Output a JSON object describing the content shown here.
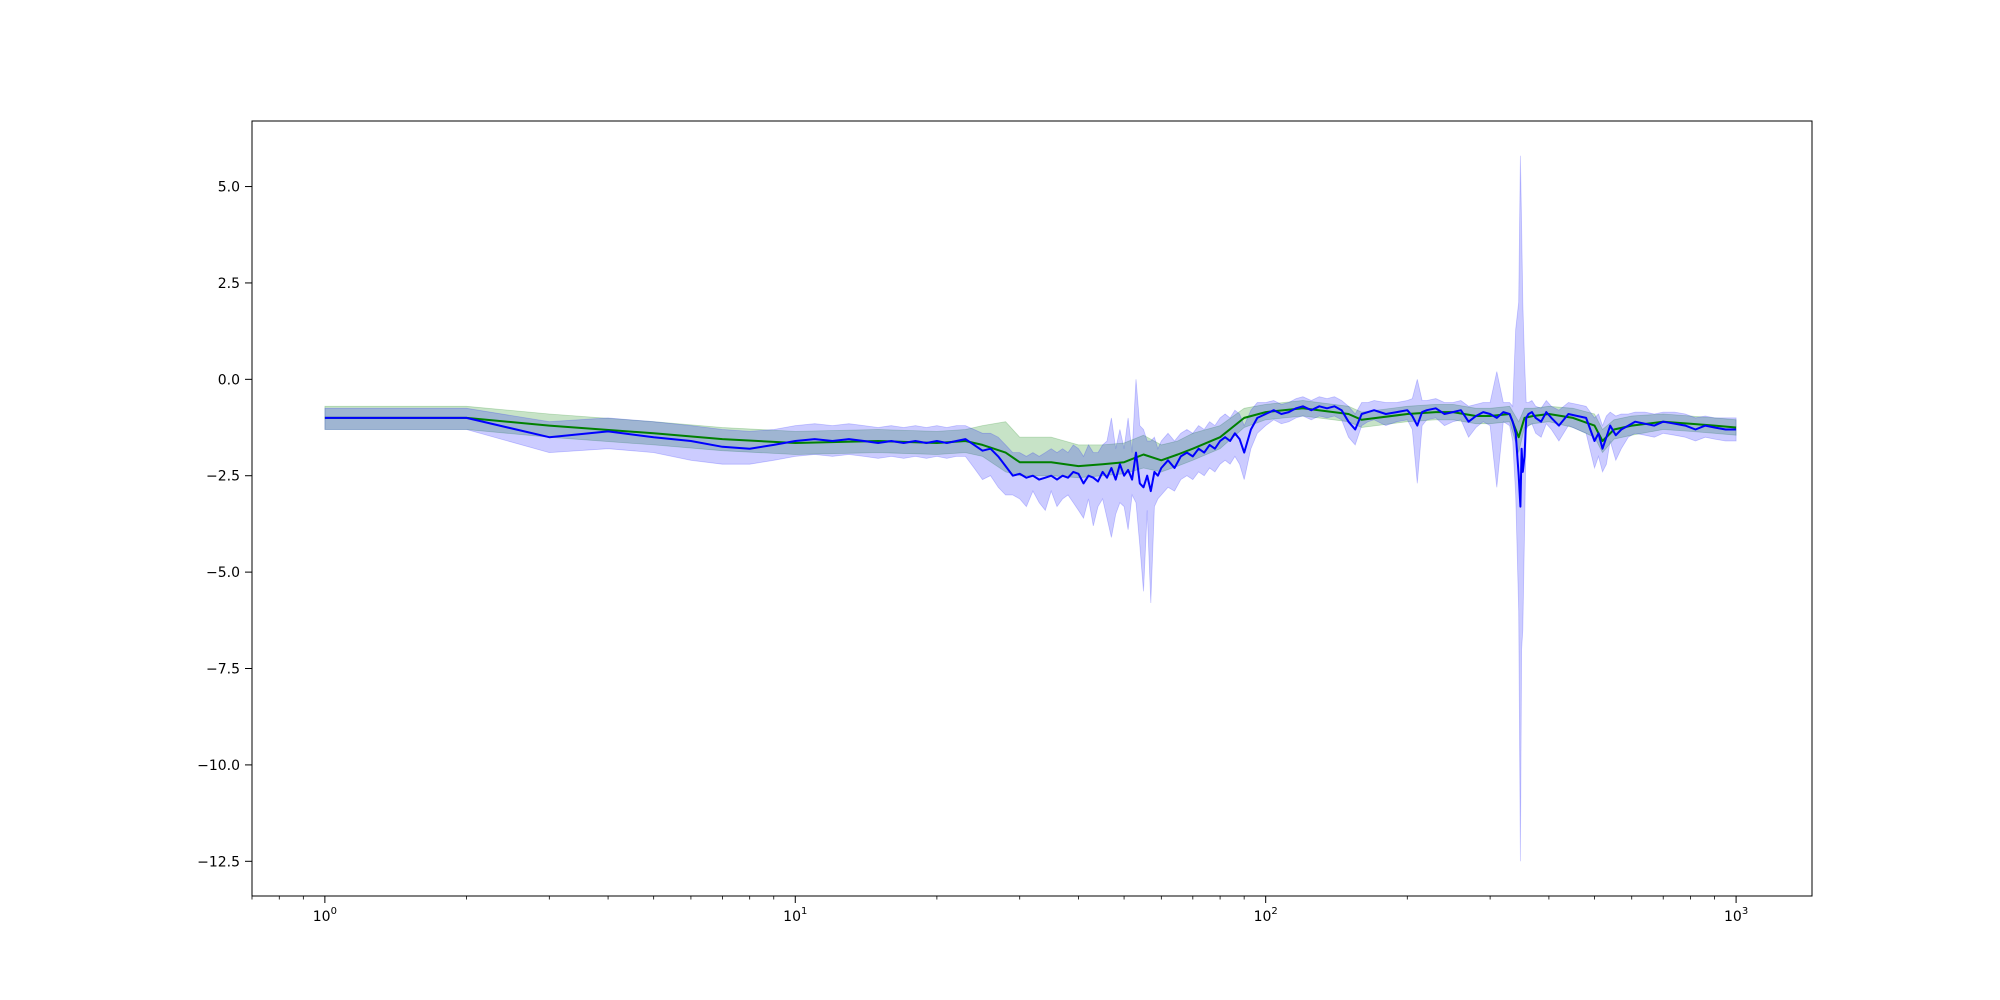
{
  "chart_data": {
    "type": "line",
    "title": "",
    "xlabel": "",
    "ylabel": "",
    "xscale": "log",
    "xlim": [
      0.7,
      1450
    ],
    "ylim": [
      -13.4,
      6.7
    ],
    "grid": false,
    "legend": "none",
    "x_ticks": [
      {
        "value": 1,
        "base": "10",
        "exp": "0"
      },
      {
        "value": 10,
        "base": "10",
        "exp": "1"
      },
      {
        "value": 100,
        "base": "10",
        "exp": "2"
      },
      {
        "value": 1000,
        "base": "10",
        "exp": "3"
      }
    ],
    "y_ticks": [
      {
        "value": 5.0,
        "label": "5.0"
      },
      {
        "value": 2.5,
        "label": "2.5"
      },
      {
        "value": 0.0,
        "label": "0.0"
      },
      {
        "value": -2.5,
        "label": "−2.5"
      },
      {
        "value": -5.0,
        "label": "−5.0"
      },
      {
        "value": -7.5,
        "label": "−7.5"
      },
      {
        "value": -10.0,
        "label": "−10.0"
      },
      {
        "value": -12.5,
        "label": "−12.5"
      }
    ],
    "series": [
      {
        "color": "#008000",
        "band_color": "#008000",
        "band_opacity": 0.22,
        "x": [
          1,
          2,
          3,
          5,
          7,
          10,
          15,
          20,
          23,
          25,
          28,
          30,
          35,
          40,
          45,
          50,
          55,
          60,
          65,
          70,
          80,
          90,
          100,
          120,
          150,
          160,
          200,
          230,
          250,
          280,
          300,
          330,
          345,
          355,
          370,
          400,
          450,
          500,
          520,
          550,
          600,
          700,
          800,
          900,
          1000
        ],
        "y": [
          -1.0,
          -1.0,
          -1.2,
          -1.4,
          -1.55,
          -1.65,
          -1.6,
          -1.65,
          -1.6,
          -1.7,
          -1.9,
          -2.15,
          -2.15,
          -2.25,
          -2.2,
          -2.15,
          -1.95,
          -2.1,
          -1.95,
          -1.8,
          -1.5,
          -1.0,
          -0.85,
          -0.75,
          -0.9,
          -1.05,
          -0.9,
          -0.85,
          -0.85,
          -0.95,
          -0.95,
          -0.9,
          -1.5,
          -1.0,
          -0.95,
          -0.9,
          -1.0,
          -1.2,
          -1.6,
          -1.3,
          -1.2,
          -1.1,
          -1.15,
          -1.2,
          -1.25
        ],
        "lower": [
          -1.3,
          -1.3,
          -1.5,
          -1.7,
          -1.85,
          -1.95,
          -1.9,
          -1.95,
          -1.9,
          -2.0,
          -2.4,
          -2.5,
          -2.5,
          -2.55,
          -2.5,
          -2.45,
          -2.3,
          -2.4,
          -2.25,
          -2.1,
          -1.8,
          -1.25,
          -1.05,
          -0.95,
          -1.1,
          -1.25,
          -1.1,
          -1.05,
          -1.05,
          -1.15,
          -1.15,
          -1.1,
          -1.9,
          -1.25,
          -1.15,
          -1.1,
          -1.25,
          -1.5,
          -1.9,
          -1.55,
          -1.45,
          -1.3,
          -1.35,
          -1.4,
          -1.45
        ],
        "upper": [
          -0.7,
          -0.7,
          -0.9,
          -1.1,
          -1.25,
          -1.35,
          -1.3,
          -1.35,
          -1.3,
          -1.2,
          -1.1,
          -1.5,
          -1.5,
          -1.7,
          -1.7,
          -1.65,
          -1.45,
          -1.7,
          -1.6,
          -1.4,
          -1.2,
          -0.75,
          -0.65,
          -0.55,
          -0.7,
          -0.85,
          -0.7,
          -0.65,
          -0.65,
          -0.75,
          -0.75,
          -0.7,
          -1.1,
          -0.75,
          -0.75,
          -0.7,
          -0.75,
          -0.9,
          -1.3,
          -1.05,
          -0.95,
          -0.9,
          -0.95,
          -1.0,
          -1.05
        ]
      },
      {
        "color": "#0000ff",
        "band_color": "#0000ff",
        "band_opacity": 0.2,
        "x": [
          1,
          2,
          3,
          4,
          5,
          6,
          7,
          8,
          9,
          10,
          11,
          12,
          13,
          14,
          15,
          16,
          17,
          18,
          19,
          20,
          21,
          22,
          23,
          24,
          25,
          26,
          27,
          28,
          29,
          30,
          31,
          32,
          33,
          34,
          35,
          36,
          37,
          38,
          39,
          40,
          41,
          42,
          43,
          44,
          45,
          46,
          47,
          48,
          49,
          50,
          51,
          52,
          53,
          54,
          55,
          56,
          57,
          58,
          59,
          60,
          62,
          64,
          66,
          68,
          70,
          72,
          74,
          76,
          78,
          80,
          82,
          84,
          86,
          88,
          90,
          93,
          96,
          100,
          104,
          108,
          112,
          116,
          120,
          125,
          130,
          135,
          140,
          145,
          150,
          155,
          160,
          165,
          170,
          180,
          190,
          200,
          205,
          210,
          215,
          220,
          230,
          240,
          250,
          260,
          270,
          280,
          290,
          300,
          310,
          320,
          330,
          335,
          340,
          345,
          348,
          350,
          352,
          355,
          358,
          362,
          368,
          375,
          385,
          395,
          405,
          420,
          440,
          460,
          480,
          500,
          510,
          520,
          530,
          540,
          555,
          570,
          590,
          610,
          640,
          670,
          700,
          740,
          780,
          820,
          860,
          900,
          950,
          1000
        ],
        "y": [
          -1.0,
          -1.0,
          -1.5,
          -1.35,
          -1.5,
          -1.6,
          -1.75,
          -1.8,
          -1.7,
          -1.6,
          -1.55,
          -1.6,
          -1.55,
          -1.6,
          -1.65,
          -1.6,
          -1.65,
          -1.6,
          -1.65,
          -1.6,
          -1.65,
          -1.6,
          -1.55,
          -1.7,
          -1.85,
          -1.8,
          -2.0,
          -2.25,
          -2.5,
          -2.45,
          -2.55,
          -2.5,
          -2.6,
          -2.55,
          -2.5,
          -2.6,
          -2.5,
          -2.55,
          -2.4,
          -2.45,
          -2.7,
          -2.5,
          -2.55,
          -2.65,
          -2.4,
          -2.55,
          -2.3,
          -2.6,
          -2.2,
          -2.5,
          -2.35,
          -2.6,
          -1.9,
          -2.7,
          -2.8,
          -2.5,
          -2.9,
          -2.4,
          -2.5,
          -2.3,
          -2.1,
          -2.3,
          -2.0,
          -1.9,
          -2.0,
          -1.8,
          -1.9,
          -1.7,
          -1.8,
          -1.6,
          -1.5,
          -1.6,
          -1.4,
          -1.55,
          -1.9,
          -1.3,
          -1.0,
          -0.9,
          -0.8,
          -0.9,
          -0.85,
          -0.75,
          -0.7,
          -0.8,
          -0.7,
          -0.75,
          -0.7,
          -0.8,
          -1.1,
          -1.3,
          -0.9,
          -0.85,
          -0.8,
          -0.9,
          -0.85,
          -0.8,
          -0.95,
          -1.2,
          -0.85,
          -0.8,
          -0.75,
          -0.9,
          -0.85,
          -0.8,
          -1.1,
          -0.95,
          -0.85,
          -0.9,
          -1.0,
          -0.85,
          -0.9,
          -1.1,
          -1.4,
          -2.5,
          -3.3,
          -1.8,
          -2.4,
          -2.0,
          -1.0,
          -0.9,
          -0.85,
          -1.0,
          -1.1,
          -0.85,
          -1.0,
          -1.2,
          -0.9,
          -0.95,
          -1.0,
          -1.6,
          -1.4,
          -1.8,
          -1.5,
          -1.2,
          -1.45,
          -1.3,
          -1.2,
          -1.1,
          -1.15,
          -1.2,
          -1.1,
          -1.15,
          -1.2,
          -1.3,
          -1.2,
          -1.25,
          -1.3,
          -1.3
        ],
        "lower": [
          -1.3,
          -1.3,
          -1.9,
          -1.8,
          -1.9,
          -2.1,
          -2.2,
          -2.2,
          -2.1,
          -2.0,
          -1.95,
          -2.0,
          -1.95,
          -2.0,
          -2.05,
          -2.0,
          -2.05,
          -2.0,
          -2.05,
          -2.0,
          -2.05,
          -2.0,
          -2.0,
          -2.3,
          -2.6,
          -2.5,
          -2.8,
          -3.0,
          -3.0,
          -3.1,
          -3.3,
          -2.9,
          -3.2,
          -3.4,
          -2.9,
          -3.3,
          -3.1,
          -3.0,
          -3.2,
          -3.4,
          -3.6,
          -3.1,
          -3.8,
          -3.3,
          -3.1,
          -3.6,
          -4.1,
          -3.5,
          -3.2,
          -3.3,
          -3.9,
          -3.0,
          -3.2,
          -4.3,
          -5.5,
          -3.4,
          -5.8,
          -3.3,
          -3.1,
          -3.0,
          -2.8,
          -2.9,
          -2.6,
          -2.5,
          -2.6,
          -2.4,
          -2.5,
          -2.3,
          -2.4,
          -2.2,
          -2.1,
          -2.2,
          -2.0,
          -2.2,
          -2.6,
          -1.8,
          -1.4,
          -1.2,
          -1.05,
          -1.15,
          -1.1,
          -1.0,
          -0.95,
          -1.05,
          -0.95,
          -1.0,
          -0.95,
          -1.05,
          -1.5,
          -1.7,
          -1.2,
          -1.1,
          -1.05,
          -1.2,
          -1.1,
          -1.05,
          -1.3,
          -2.7,
          -1.2,
          -1.05,
          -1.0,
          -1.2,
          -1.1,
          -1.05,
          -1.5,
          -1.25,
          -1.1,
          -1.2,
          -2.8,
          -1.1,
          -1.2,
          -1.6,
          -3.0,
          -6.0,
          -12.5,
          -7.0,
          -6.5,
          -4.0,
          -1.3,
          -1.2,
          -1.15,
          -1.4,
          -1.5,
          -1.15,
          -1.3,
          -1.6,
          -1.2,
          -1.3,
          -1.4,
          -2.3,
          -2.0,
          -2.4,
          -2.2,
          -1.6,
          -2.1,
          -1.8,
          -1.5,
          -1.4,
          -1.45,
          -1.5,
          -1.4,
          -1.45,
          -1.5,
          -1.6,
          -1.5,
          -1.55,
          -1.6,
          -1.6
        ],
        "upper": [
          -0.75,
          -0.75,
          -1.1,
          -1.0,
          -1.1,
          -1.2,
          -1.3,
          -1.35,
          -1.3,
          -1.2,
          -1.15,
          -1.2,
          -1.15,
          -1.2,
          -1.25,
          -1.2,
          -1.25,
          -1.2,
          -1.25,
          -1.2,
          -1.25,
          -1.2,
          -1.2,
          -1.3,
          -1.4,
          -1.4,
          -1.5,
          -1.7,
          -1.9,
          -1.9,
          -2.0,
          -1.9,
          -2.0,
          -1.9,
          -1.8,
          -1.9,
          -1.8,
          -1.9,
          -1.7,
          -1.8,
          -2.0,
          -1.7,
          -1.9,
          -1.9,
          -1.7,
          -1.6,
          -1.0,
          -1.8,
          -1.3,
          -1.8,
          -1.0,
          -1.9,
          0.0,
          -1.2,
          -1.3,
          -1.6,
          -1.6,
          -1.5,
          -1.8,
          -1.6,
          -1.4,
          -1.6,
          -1.4,
          -1.3,
          -1.4,
          -1.2,
          -1.3,
          -1.1,
          -1.2,
          -1.0,
          -0.9,
          -1.0,
          -0.8,
          -0.9,
          -1.2,
          -0.8,
          -0.6,
          -0.6,
          -0.55,
          -0.65,
          -0.6,
          -0.5,
          -0.45,
          -0.55,
          -0.45,
          -0.5,
          -0.45,
          -0.55,
          -0.7,
          -0.9,
          -0.6,
          -0.6,
          -0.55,
          -0.6,
          -0.6,
          -0.55,
          -0.5,
          0.0,
          -0.55,
          -0.55,
          -0.5,
          -0.6,
          -0.6,
          -0.55,
          -0.7,
          -0.65,
          -0.6,
          -0.6,
          0.2,
          -0.6,
          -0.6,
          -0.7,
          1.3,
          2.0,
          5.8,
          4.0,
          2.0,
          0.5,
          -0.6,
          -0.6,
          -0.55,
          -0.7,
          -0.75,
          -0.55,
          -0.7,
          -0.8,
          -0.6,
          -0.65,
          -0.7,
          -1.0,
          -0.9,
          -1.2,
          -0.95,
          -0.85,
          -0.95,
          -0.9,
          -0.9,
          -0.85,
          -0.85,
          -0.9,
          -0.85,
          -0.85,
          -0.9,
          -1.0,
          -0.95,
          -1.0,
          -1.0,
          -1.0
        ]
      }
    ]
  }
}
